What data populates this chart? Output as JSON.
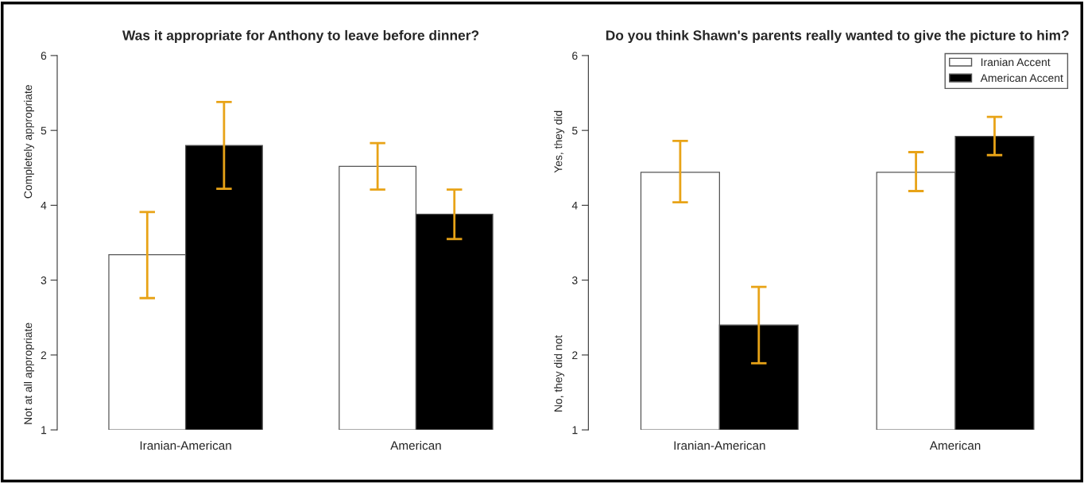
{
  "chart_data": [
    {
      "type": "bar",
      "title": "Was it appropriate for Anthony to leave before dinner?",
      "categories": [
        "Iranian-American",
        "American"
      ],
      "ylim": [
        1,
        6
      ],
      "yticks": [
        1,
        2,
        3,
        4,
        5,
        6
      ],
      "annotations": [
        "Completely appropriate",
        "Not at all appropriate"
      ],
      "legend": false,
      "series": [
        {
          "color": "#ffffff",
          "values": [
            3.34,
            4.52
          ],
          "errors": [
            [
              2.76,
              3.91
            ],
            [
              4.21,
              4.83
            ]
          ]
        },
        {
          "color": "#000000",
          "values": [
            4.8,
            3.88
          ],
          "errors": [
            [
              4.22,
              5.38
            ],
            [
              3.55,
              4.21
            ]
          ]
        }
      ]
    },
    {
      "type": "bar",
      "title": "Do you think Shawn's parents really wanted to give the picture to him?",
      "categories": [
        "Iranian-American",
        "American"
      ],
      "ylim": [
        1,
        6
      ],
      "yticks": [
        1,
        2,
        3,
        4,
        5,
        6
      ],
      "annotations": [
        "Yes, they did",
        "No, they did not"
      ],
      "legend": "top right",
      "series": [
        {
          "name": "Iranian Accent",
          "color": "#ffffff",
          "values": [
            4.44,
            4.44
          ],
          "errors": [
            [
              4.04,
              4.86
            ],
            [
              4.19,
              4.71
            ]
          ]
        },
        {
          "name": "American Accent",
          "color": "#000000",
          "values": [
            2.4,
            4.92
          ],
          "errors": [
            [
              1.89,
              2.91
            ],
            [
              4.67,
              5.18
            ]
          ]
        }
      ]
    }
  ]
}
